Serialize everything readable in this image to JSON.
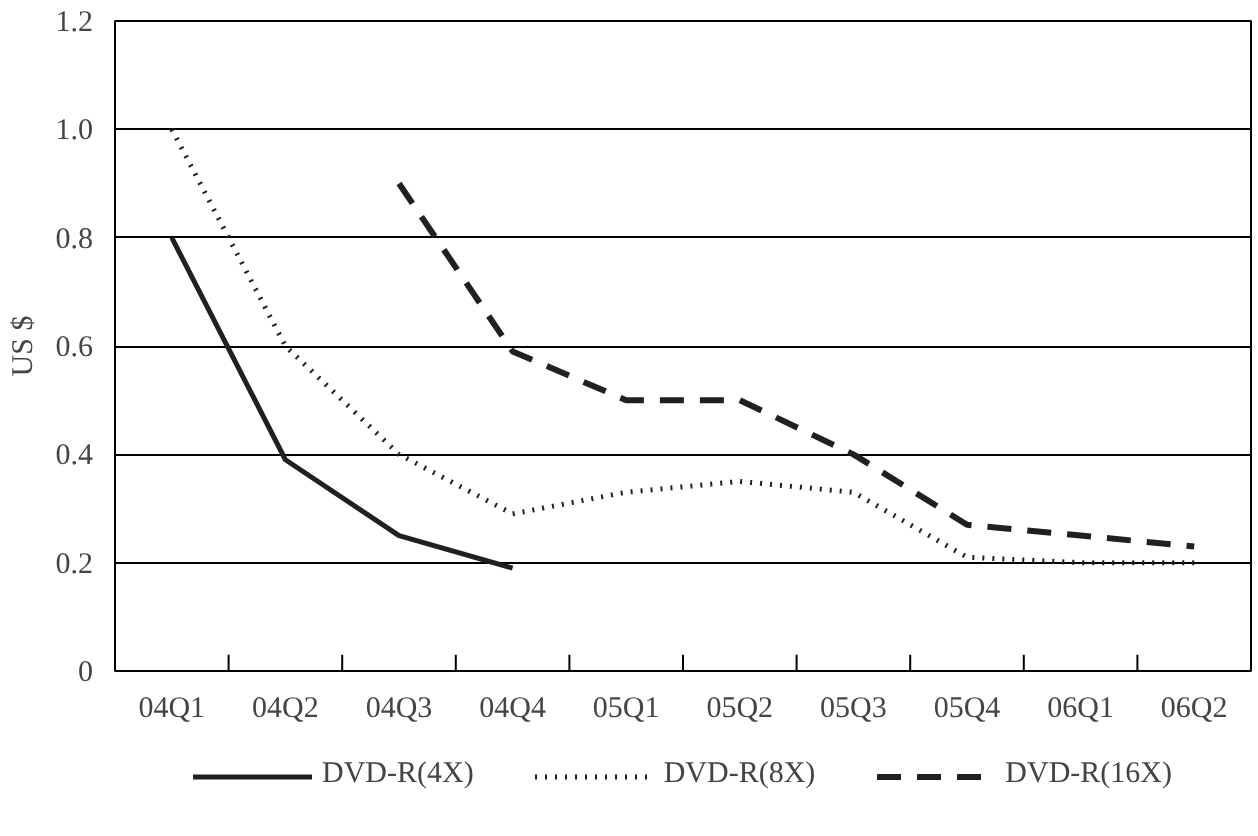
{
  "chart_data": {
    "type": "line",
    "ylabel": "US $",
    "categories": [
      "04Q1",
      "04Q2",
      "04Q3",
      "04Q4",
      "05Q1",
      "05Q2",
      "05Q3",
      "05Q4",
      "06Q1",
      "06Q2"
    ],
    "series": [
      {
        "name": "DVD-R(4X)",
        "color": "#231f20",
        "line_style": "solid",
        "values": [
          0.8,
          0.39,
          0.25,
          0.19,
          null,
          null,
          null,
          null,
          null,
          null
        ]
      },
      {
        "name": "DVD-R(8X)",
        "color": "#231f20",
        "line_style": "dotted",
        "values": [
          1.0,
          0.6,
          0.4,
          0.29,
          0.33,
          0.35,
          0.33,
          0.21,
          0.2,
          0.2
        ]
      },
      {
        "name": "DVD-R(16X)",
        "color": "#231f20",
        "line_style": "dashed",
        "values": [
          null,
          null,
          0.9,
          0.59,
          0.5,
          0.5,
          0.4,
          0.27,
          0.25,
          0.23
        ]
      }
    ],
    "ylim": [
      0,
      1.2
    ],
    "yticks": [
      0,
      0.2,
      0.4,
      0.6,
      0.8,
      {
        "value": 1,
        "label": "1.0"
      },
      1.2
    ],
    "grid": "y",
    "legend": "bottom",
    "marker": "none"
  }
}
